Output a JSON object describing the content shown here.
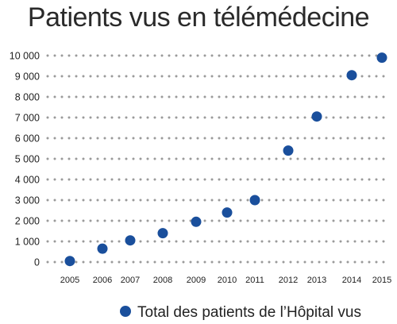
{
  "colors": {
    "point": "#1a4f9c",
    "grid": "#9a9a9a",
    "text": "#222222"
  },
  "chart_data": {
    "type": "scatter",
    "title": "Patients vus en télémédecine",
    "xlabel": "",
    "ylabel": "",
    "x": [
      "2005",
      "2006",
      "2007",
      "2008",
      "2009",
      "2010",
      "2011",
      "2012",
      "2013",
      "2014",
      "2015"
    ],
    "y_ticks": [
      "0",
      "1 000",
      "2 000",
      "3 000",
      "4 000",
      "5 000",
      "6 000",
      "7 000",
      "8 000",
      "9 000",
      "10 000"
    ],
    "ylim": [
      0,
      10000
    ],
    "grid": "dotted horizontal",
    "legend_position": "bottom",
    "series": [
      {
        "name": "Total des patients de l’Hôpital vus",
        "values": [
          50,
          650,
          1050,
          1400,
          1950,
          2400,
          3000,
          5400,
          7050,
          9050,
          9900
        ]
      }
    ]
  }
}
